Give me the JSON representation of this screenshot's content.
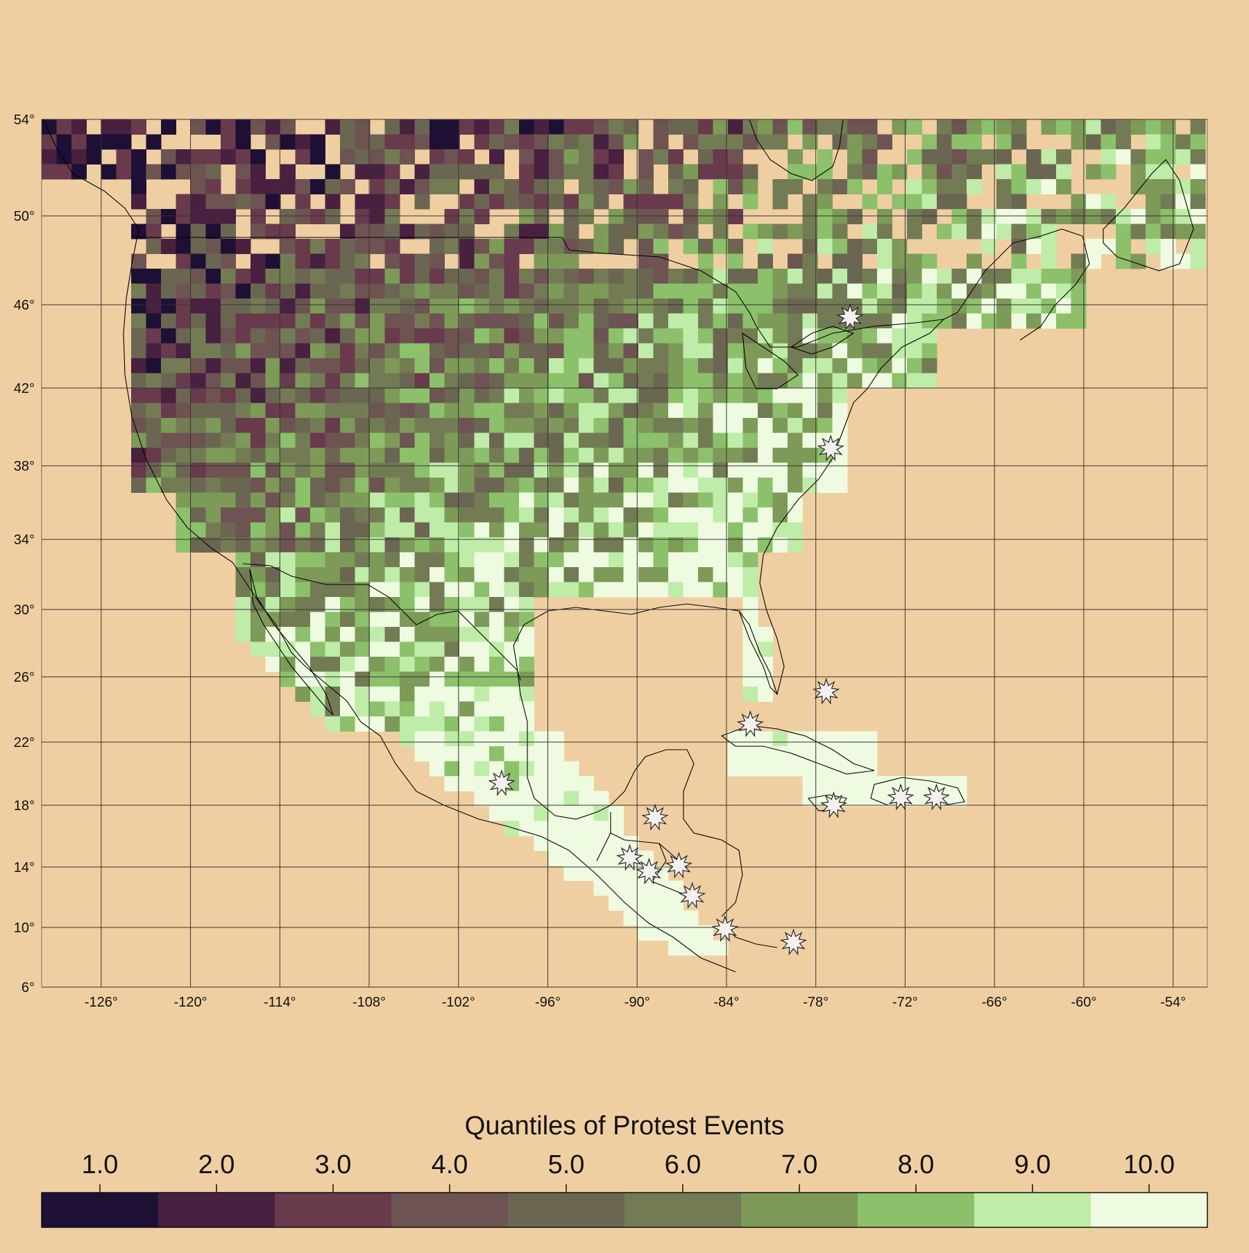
{
  "map": {
    "lat_range": [
      6,
      54
    ],
    "lon_range": [
      -130,
      -52
    ],
    "lat_ticks": [
      {
        "value": 54,
        "label": "54°"
      },
      {
        "value": 50,
        "label": "50°"
      },
      {
        "value": 46,
        "label": "46°"
      },
      {
        "value": 42,
        "label": "42°"
      },
      {
        "value": 38,
        "label": "38°"
      },
      {
        "value": 34,
        "label": "34°"
      },
      {
        "value": 30,
        "label": "30°"
      },
      {
        "value": 26,
        "label": "26°"
      },
      {
        "value": 22,
        "label": "22°"
      },
      {
        "value": 18,
        "label": "18°"
      },
      {
        "value": 14,
        "label": "14°"
      },
      {
        "value": 10,
        "label": "10°"
      },
      {
        "value": 6,
        "label": "6°"
      }
    ],
    "lon_ticks": [
      {
        "value": -126,
        "label": "-126°"
      },
      {
        "value": -120,
        "label": "-120°"
      },
      {
        "value": -114,
        "label": "-114°"
      },
      {
        "value": -108,
        "label": "-108°"
      },
      {
        "value": -102,
        "label": "-102°"
      },
      {
        "value": -96,
        "label": "-96°"
      },
      {
        "value": -90,
        "label": "-90°"
      },
      {
        "value": -84,
        "label": "-84°"
      },
      {
        "value": -78,
        "label": "-78°"
      },
      {
        "value": -72,
        "label": "-72°"
      },
      {
        "value": -66,
        "label": "-66°"
      },
      {
        "value": -60,
        "label": "-60°"
      },
      {
        "value": -54,
        "label": "-54°"
      }
    ],
    "background_color": "#efcfa2",
    "grid": true,
    "markers": "capital-star-icon",
    "capitals": [
      {
        "lon": -75.7,
        "lat": 45.4
      },
      {
        "lon": -77.0,
        "lat": 38.9
      },
      {
        "lon": -99.1,
        "lat": 19.4
      },
      {
        "lon": -77.3,
        "lat": 25.1
      },
      {
        "lon": -82.4,
        "lat": 23.1
      },
      {
        "lon": -76.8,
        "lat": 18.0
      },
      {
        "lon": -72.3,
        "lat": 18.5
      },
      {
        "lon": -69.9,
        "lat": 18.5
      },
      {
        "lon": -88.8,
        "lat": 17.2
      },
      {
        "lon": -90.5,
        "lat": 14.6
      },
      {
        "lon": -89.2,
        "lat": 13.7
      },
      {
        "lon": -87.2,
        "lat": 14.1
      },
      {
        "lon": -86.3,
        "lat": 12.1
      },
      {
        "lon": -84.1,
        "lat": 9.9
      },
      {
        "lon": -79.5,
        "lat": 9.0
      }
    ]
  },
  "legend": {
    "title": "Quantiles of Protest Events",
    "labels": [
      "1.0",
      "2.0",
      "3.0",
      "4.0",
      "5.0",
      "6.0",
      "7.0",
      "8.0",
      "9.0",
      "10.0"
    ],
    "colors": [
      "#1e0f35",
      "#482040",
      "#683a4c",
      "#6d5351",
      "#6b6652",
      "#737b54",
      "#7d9a58",
      "#8cc06a",
      "#bfeca8",
      "#eefbe0"
    ]
  }
}
